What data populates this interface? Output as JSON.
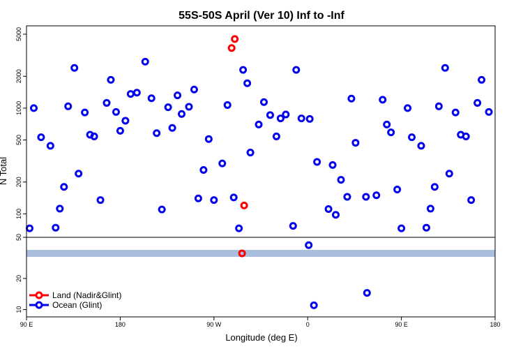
{
  "chart_data": {
    "type": "scatter",
    "title": "55S-50S April (Ver 10)   Inf to -Inf",
    "xlabel": "Longitude (deg E)",
    "ylabel": "N Total",
    "x_axis": {
      "positions": [
        90,
        180,
        270,
        360,
        450,
        540
      ],
      "tick_labels": [
        "90 E",
        "180",
        "90 W",
        "0",
        "90 E",
        "180"
      ],
      "range": [
        90,
        540
      ]
    },
    "y_axis_main": {
      "scale": "log",
      "range": [
        60,
        6000
      ],
      "tick_values": [
        100,
        200,
        500,
        1000,
        2000,
        5000
      ],
      "tick_labels": [
        "100",
        "200",
        "500",
        "1000",
        "2000",
        "5000"
      ]
    },
    "y_axis_lower": {
      "scale": "log",
      "range": [
        8.5,
        50
      ],
      "tick_values": [
        10,
        20,
        50
      ],
      "tick_labels": [
        "10",
        "20",
        "50"
      ],
      "band": {
        "value": 35,
        "color": "#a8bedc"
      }
    },
    "legend": {
      "placement": "bottom-left",
      "entries": [
        {
          "label": "Land (Nadir&Glint)",
          "color": "#ff0000"
        },
        {
          "label": "Ocean (Glint)",
          "color": "#0000ee"
        }
      ]
    },
    "series": [
      {
        "name": "Land (Nadir&Glint)",
        "color": "#ff0000",
        "points": [
          [
            290,
            4500
          ],
          [
            287,
            3700
          ],
          [
            299,
            120
          ]
        ],
        "lower_points": [
          [
            297,
            35
          ]
        ]
      },
      {
        "name": "Ocean (Glint)",
        "color": "#0000ee",
        "points": [
          [
            93,
            73
          ],
          [
            97,
            1000
          ],
          [
            104,
            530
          ],
          [
            113,
            440
          ],
          [
            118,
            74
          ],
          [
            122,
            112
          ],
          [
            126,
            180
          ],
          [
            130,
            1040
          ],
          [
            136,
            2400
          ],
          [
            140,
            240
          ],
          [
            146,
            910
          ],
          [
            151,
            560
          ],
          [
            155,
            540
          ],
          [
            161,
            135
          ],
          [
            167,
            1120
          ],
          [
            171,
            1850
          ],
          [
            176,
            920
          ],
          [
            180,
            610
          ],
          [
            185,
            760
          ],
          [
            190,
            1360
          ],
          [
            196,
            1400
          ],
          [
            204,
            2750
          ],
          [
            210,
            1240
          ],
          [
            215,
            580
          ],
          [
            220,
            110
          ],
          [
            226,
            1020
          ],
          [
            230,
            650
          ],
          [
            235,
            1320
          ],
          [
            239,
            880
          ],
          [
            246,
            1030
          ],
          [
            251,
            1500
          ],
          [
            255,
            140
          ],
          [
            260,
            260
          ],
          [
            265,
            510
          ],
          [
            270,
            135
          ],
          [
            278,
            300
          ],
          [
            283,
            1070
          ],
          [
            289,
            143
          ],
          [
            294,
            73
          ],
          [
            298,
            2300
          ],
          [
            302,
            1720
          ],
          [
            305,
            380
          ],
          [
            313,
            700
          ],
          [
            318,
            1140
          ],
          [
            324,
            860
          ],
          [
            330,
            540
          ],
          [
            334,
            800
          ],
          [
            339,
            870
          ],
          [
            346,
            77
          ],
          [
            349,
            2300
          ],
          [
            354,
            800
          ],
          [
            362,
            790
          ],
          [
            369,
            310
          ],
          [
            380,
            111
          ],
          [
            384,
            290
          ],
          [
            387,
            98
          ],
          [
            392,
            210
          ],
          [
            398,
            145
          ],
          [
            402,
            1230
          ],
          [
            406,
            470
          ],
          [
            416,
            145
          ],
          [
            426,
            150
          ],
          [
            432,
            1200
          ],
          [
            436,
            700
          ],
          [
            440,
            590
          ],
          [
            446,
            170
          ],
          [
            450,
            73
          ],
          [
            456,
            1000
          ],
          [
            460,
            530
          ],
          [
            469,
            440
          ],
          [
            474,
            74
          ],
          [
            478,
            112
          ],
          [
            482,
            180
          ],
          [
            486,
            1040
          ],
          [
            492,
            2400
          ],
          [
            496,
            240
          ],
          [
            502,
            910
          ],
          [
            507,
            560
          ],
          [
            512,
            540
          ],
          [
            517,
            135
          ],
          [
            523,
            1120
          ],
          [
            527,
            1850
          ],
          [
            534,
            920
          ]
        ],
        "lower_points": [
          [
            361,
            42
          ],
          [
            366,
            11
          ],
          [
            417,
            14.5
          ]
        ]
      }
    ]
  }
}
